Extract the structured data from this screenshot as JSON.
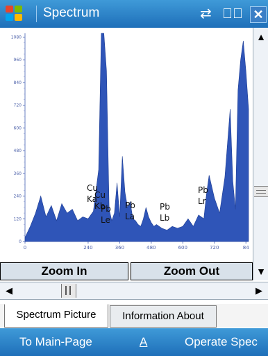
{
  "title_bar": {
    "app_title": "Spectrum",
    "icons": [
      "windows-start-icon",
      "connectivity-icon",
      "volume-icon",
      "close-icon"
    ],
    "close_label": "✕"
  },
  "chart_data": {
    "type": "area",
    "title": "",
    "xlabel": "",
    "ylabel": "",
    "xlim": [
      0,
      850
    ],
    "ylim": [
      0,
      1100
    ],
    "x_ticks": [
      "0",
      "240",
      "360",
      "480",
      "600",
      "720",
      "84"
    ],
    "y_ticks": [
      "1080",
      "960",
      "840",
      "720",
      "600",
      "480",
      "360",
      "240",
      "120",
      "0"
    ],
    "color": "#2f55b8",
    "series": [
      {
        "x": [
          0,
          20,
          40,
          60,
          80,
          100,
          120,
          140,
          160,
          180,
          200,
          220,
          240,
          260,
          280,
          290,
          300,
          310,
          320,
          330,
          340,
          350,
          360,
          370,
          380,
          390,
          400,
          410,
          420,
          430,
          440,
          450,
          460,
          470,
          480,
          490,
          500,
          520,
          540,
          560,
          580,
          600,
          620,
          640,
          660,
          680,
          690,
          700,
          720,
          740,
          760,
          780,
          790,
          800,
          810,
          820,
          830,
          840,
          850
        ],
        "y": [
          20,
          80,
          150,
          240,
          130,
          190,
          110,
          200,
          150,
          170,
          110,
          130,
          120,
          160,
          380,
          1100,
          1100,
          900,
          170,
          110,
          150,
          310,
          130,
          450,
          260,
          180,
          210,
          120,
          110,
          90,
          80,
          120,
          180,
          130,
          100,
          80,
          90,
          70,
          60,
          80,
          70,
          80,
          120,
          80,
          140,
          120,
          250,
          350,
          230,
          150,
          340,
          700,
          320,
          170,
          800,
          960,
          1060,
          900,
          700
        ]
      }
    ],
    "annotations": [
      {
        "lines": [
          "Cu",
          "Ka"
        ]
      },
      {
        "lines": [
          "Cu",
          "Kb"
        ]
      },
      {
        "lines": [
          "Pb",
          "Le"
        ]
      },
      {
        "lines": [
          "Pb",
          "La"
        ]
      },
      {
        "lines": [
          "Pb",
          "Lb"
        ]
      },
      {
        "lines": [
          "Pb",
          "Lr"
        ]
      }
    ]
  },
  "zoom": {
    "zoom_in_label": "Zoom In",
    "zoom_out_label": "Zoom Out"
  },
  "tabs": [
    {
      "label": "Spectrum Picture",
      "active": true
    },
    {
      "label": "Information About",
      "active": false
    }
  ],
  "softkeys": {
    "left": "To Main-Page",
    "center": "A",
    "right": "Operate Spec"
  }
}
